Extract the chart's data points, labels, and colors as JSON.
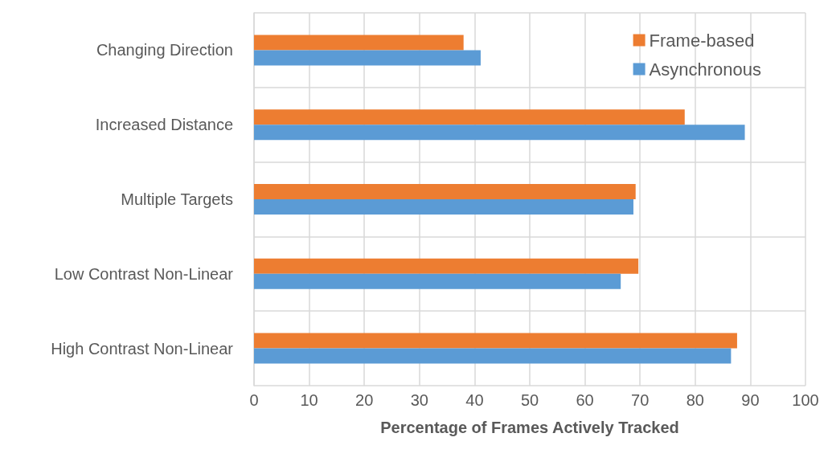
{
  "chart_data": {
    "type": "bar",
    "orientation": "horizontal",
    "xlabel": "Percentage of Frames Actively Tracked",
    "categories": [
      "Changing Direction",
      "Increased Distance",
      "Multiple Targets",
      "Low Contrast Non-Linear",
      "High Contrast Non-Linear"
    ],
    "series": [
      {
        "name": "Frame-based",
        "color": "#ed7d31",
        "values": [
          38.0,
          78.1,
          69.2,
          69.7,
          87.6
        ]
      },
      {
        "name": "Asynchronous",
        "color": "#5b9bd5",
        "values": [
          41.1,
          89.0,
          68.8,
          66.5,
          86.5
        ]
      }
    ],
    "xlim": [
      0,
      100
    ],
    "xticks": [
      0,
      10,
      20,
      30,
      40,
      50,
      60,
      70,
      80,
      90,
      100
    ],
    "grid": true,
    "legend": "top right"
  }
}
